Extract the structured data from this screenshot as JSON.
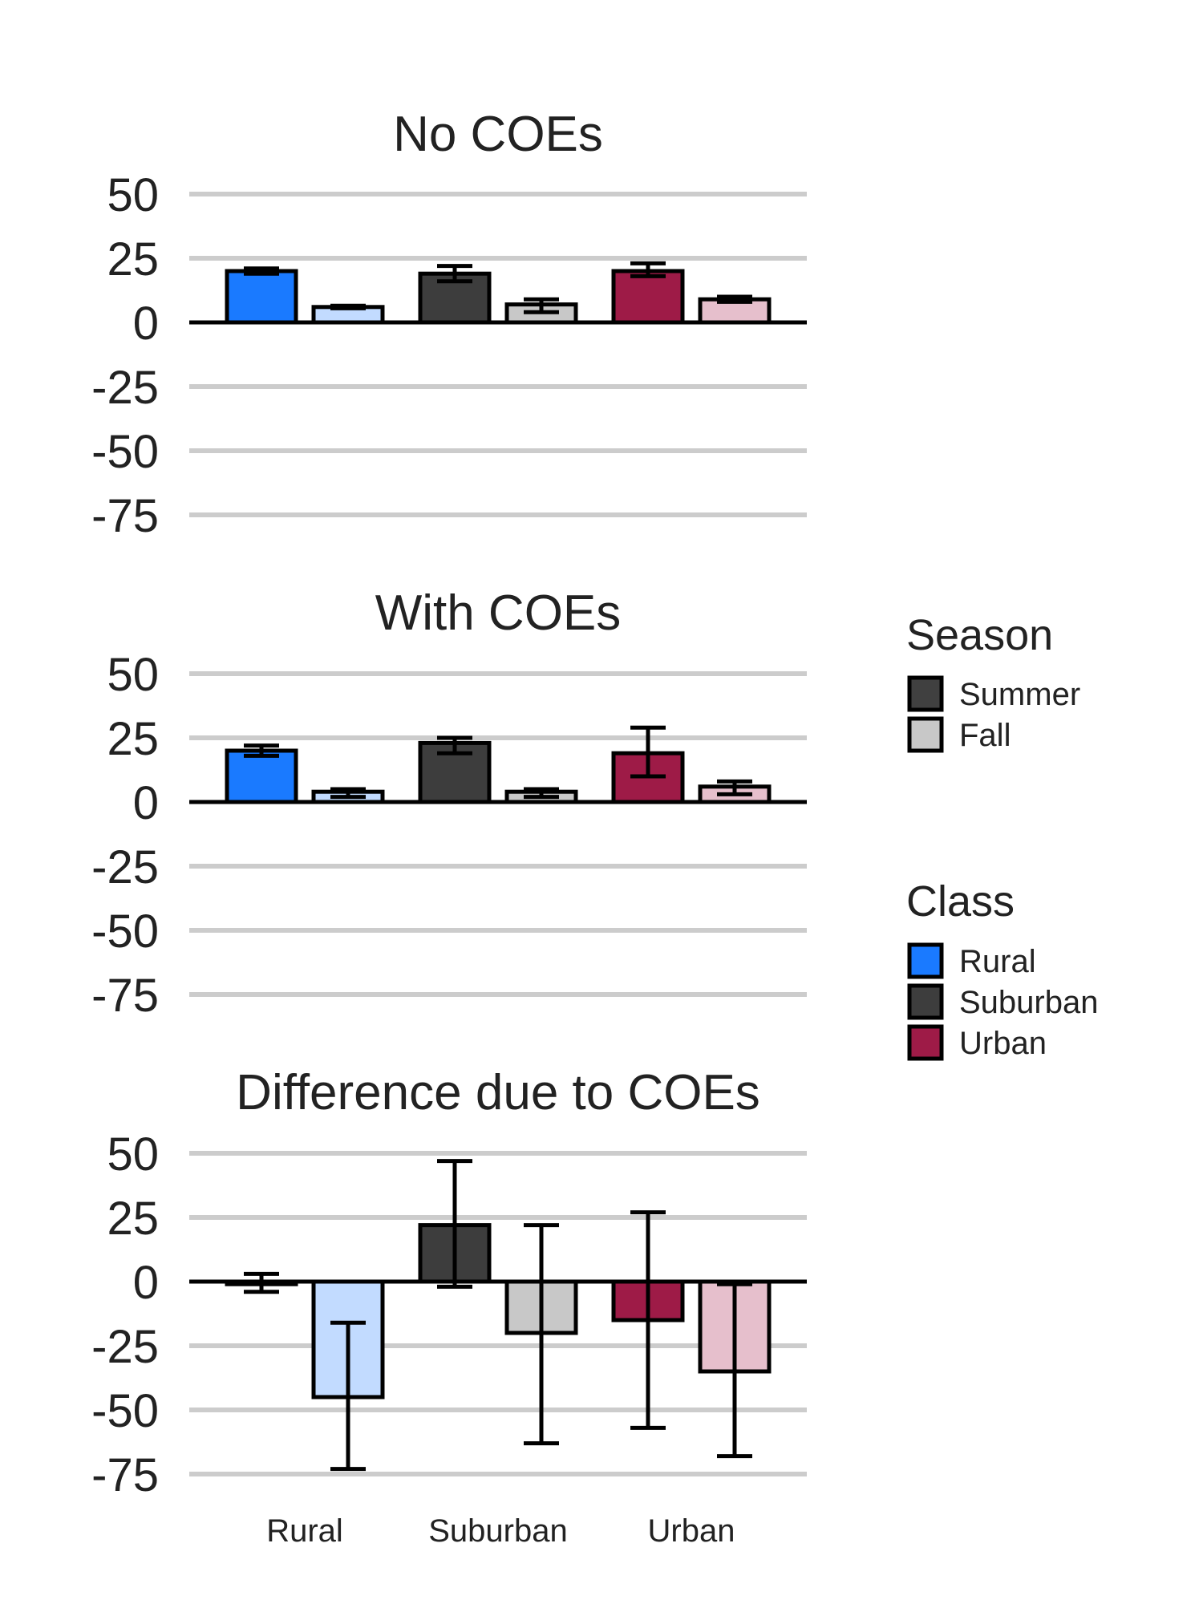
{
  "chart_data": {
    "type": "bar",
    "categories": [
      "Rural",
      "Suburban",
      "Urban"
    ],
    "y_ticks": [
      50,
      25,
      0,
      -25,
      -50,
      -75
    ],
    "ylim": [
      -75,
      50
    ],
    "grid": true,
    "legend_placement": "right",
    "season_legend": {
      "title": "Season",
      "items": [
        {
          "label": "Summer",
          "color": "#404040"
        },
        {
          "label": "Fall",
          "color": "#c8c8c8"
        }
      ]
    },
    "class_legend": {
      "title": "Class",
      "items": [
        {
          "label": "Rural",
          "color": "#1a7aff"
        },
        {
          "label": "Suburban",
          "color": "#3d3d3d"
        },
        {
          "label": "Urban",
          "color": "#9e1b47"
        }
      ]
    },
    "bar_colors": {
      "Rural": {
        "Summer": "#1a7aff",
        "Fall": "#c2dbff"
      },
      "Suburban": {
        "Summer": "#3d3d3d",
        "Fall": "#c8c8c8"
      },
      "Urban": {
        "Summer": "#9e1b47",
        "Fall": "#e6bfcc"
      }
    },
    "panels": [
      {
        "title": "No COEs",
        "bars": [
          {
            "class": "Rural",
            "season": "Summer",
            "value": 20,
            "err_low": 19,
            "err_high": 21
          },
          {
            "class": "Rural",
            "season": "Fall",
            "value": 6,
            "err_low": 5.5,
            "err_high": 6.5
          },
          {
            "class": "Suburban",
            "season": "Summer",
            "value": 19,
            "err_low": 16,
            "err_high": 22
          },
          {
            "class": "Suburban",
            "season": "Fall",
            "value": 7,
            "err_low": 4,
            "err_high": 9
          },
          {
            "class": "Urban",
            "season": "Summer",
            "value": 20,
            "err_low": 18,
            "err_high": 23
          },
          {
            "class": "Urban",
            "season": "Fall",
            "value": 9,
            "err_low": 8,
            "err_high": 10
          }
        ]
      },
      {
        "title": "With COEs",
        "bars": [
          {
            "class": "Rural",
            "season": "Summer",
            "value": 20,
            "err_low": 18,
            "err_high": 22
          },
          {
            "class": "Rural",
            "season": "Fall",
            "value": 4,
            "err_low": 2,
            "err_high": 5
          },
          {
            "class": "Suburban",
            "season": "Summer",
            "value": 23,
            "err_low": 19,
            "err_high": 25
          },
          {
            "class": "Suburban",
            "season": "Fall",
            "value": 4,
            "err_low": 2,
            "err_high": 5
          },
          {
            "class": "Urban",
            "season": "Summer",
            "value": 19,
            "err_low": 10,
            "err_high": 29
          },
          {
            "class": "Urban",
            "season": "Fall",
            "value": 6,
            "err_low": 3,
            "err_high": 8
          }
        ]
      },
      {
        "title": "Difference due to COEs",
        "bars": [
          {
            "class": "Rural",
            "season": "Summer",
            "value": -1,
            "err_low": -4,
            "err_high": 3
          },
          {
            "class": "Rural",
            "season": "Fall",
            "value": -45,
            "err_low": -73,
            "err_high": -16
          },
          {
            "class": "Suburban",
            "season": "Summer",
            "value": 22,
            "err_low": -2,
            "err_high": 47
          },
          {
            "class": "Suburban",
            "season": "Fall",
            "value": -20,
            "err_low": -63,
            "err_high": 22
          },
          {
            "class": "Urban",
            "season": "Summer",
            "value": -15,
            "err_low": -57,
            "err_high": 27
          },
          {
            "class": "Urban",
            "season": "Fall",
            "value": -35,
            "err_low": -68,
            "err_high": -1
          }
        ]
      }
    ]
  }
}
